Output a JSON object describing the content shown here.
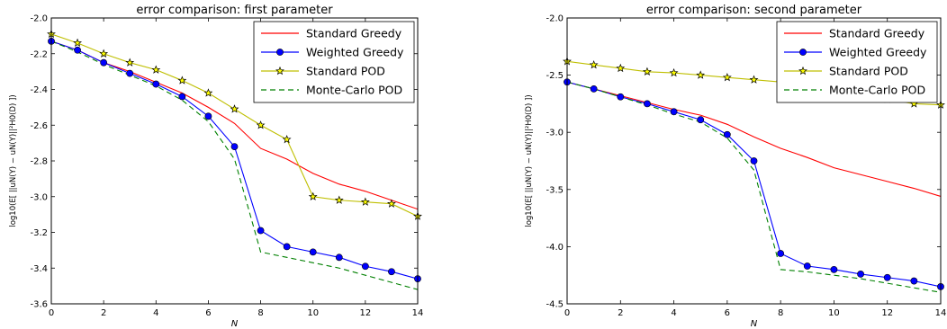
{
  "chart_data": [
    {
      "type": "line",
      "title": "error comparison: first parameter",
      "xlabel": "N",
      "ylabel": "log10(E[ ||uN(Y) − uN(Y)||²H0(D) ])",
      "xlim": [
        0,
        14
      ],
      "ylim": [
        -3.6,
        -2.0
      ],
      "xticks": [
        "0",
        "2",
        "4",
        "6",
        "8",
        "10",
        "12",
        "14"
      ],
      "yticks": [
        "-2.0",
        "-2.2",
        "-2.4",
        "-2.6",
        "-2.8",
        "-3.0",
        "-3.2",
        "-3.4",
        "-3.6"
      ],
      "grid": false,
      "legend_position": "top-right",
      "series": [
        {
          "name": "Standard Greedy",
          "color": "#ff0000",
          "style": "solid",
          "marker": "none",
          "x": [
            0,
            1,
            2,
            3,
            4,
            5,
            6,
            7,
            8,
            9,
            10,
            11,
            12,
            13,
            14
          ],
          "y": [
            -2.13,
            -2.18,
            -2.25,
            -2.3,
            -2.36,
            -2.42,
            -2.5,
            -2.59,
            -2.73,
            -2.79,
            -2.87,
            -2.93,
            -2.97,
            -3.02,
            -3.07
          ]
        },
        {
          "name": "Weighted Greedy",
          "color": "#0000ff",
          "style": "solid",
          "marker": "circle",
          "x": [
            0,
            1,
            2,
            3,
            4,
            5,
            6,
            7,
            8,
            9,
            10,
            11,
            12,
            13,
            14
          ],
          "y": [
            -2.13,
            -2.18,
            -2.25,
            -2.31,
            -2.37,
            -2.44,
            -2.55,
            -2.72,
            -3.19,
            -3.28,
            -3.31,
            -3.34,
            -3.39,
            -3.42,
            -3.46
          ]
        },
        {
          "name": "Standard POD",
          "color": "#bfbf00",
          "style": "solid",
          "marker": "star",
          "x": [
            0,
            1,
            2,
            3,
            4,
            5,
            6,
            7,
            8,
            9,
            10,
            11,
            12,
            13,
            14
          ],
          "y": [
            -2.09,
            -2.14,
            -2.2,
            -2.25,
            -2.29,
            -2.35,
            -2.42,
            -2.51,
            -2.6,
            -2.68,
            -3.0,
            -3.02,
            -3.03,
            -3.04,
            -3.11
          ]
        },
        {
          "name": "Monte-Carlo POD",
          "color": "#008000",
          "style": "dashed",
          "marker": "none",
          "x": [
            0,
            1,
            2,
            3,
            4,
            5,
            6,
            7,
            8,
            9,
            10,
            11,
            12,
            13,
            14
          ],
          "y": [
            -2.13,
            -2.19,
            -2.26,
            -2.32,
            -2.38,
            -2.46,
            -2.58,
            -2.79,
            -3.31,
            -3.34,
            -3.37,
            -3.4,
            -3.44,
            -3.48,
            -3.52
          ]
        }
      ]
    },
    {
      "type": "line",
      "title": "error comparison: second parameter",
      "xlabel": "N",
      "ylabel": "log10(E[ ||uN(Y) − uN(Y)||²H0(D) ])",
      "xlim": [
        0,
        14
      ],
      "ylim": [
        -4.5,
        -2.0
      ],
      "xticks": [
        "0",
        "2",
        "4",
        "6",
        "8",
        "10",
        "12",
        "14"
      ],
      "yticks": [
        "-2.0",
        "-2.5",
        "-3.0",
        "-3.5",
        "-4.0",
        "-4.5"
      ],
      "grid": false,
      "legend_position": "top-right",
      "series": [
        {
          "name": "Standard Greedy",
          "color": "#ff0000",
          "style": "solid",
          "marker": "none",
          "x": [
            0,
            1,
            2,
            3,
            4,
            5,
            6,
            7,
            8,
            9,
            10,
            11,
            12,
            13,
            14
          ],
          "y": [
            -2.56,
            -2.62,
            -2.68,
            -2.74,
            -2.8,
            -2.85,
            -2.93,
            -3.04,
            -3.14,
            -3.22,
            -3.31,
            -3.37,
            -3.43,
            -3.49,
            -3.56
          ]
        },
        {
          "name": "Weighted Greedy",
          "color": "#0000ff",
          "style": "solid",
          "marker": "circle",
          "x": [
            0,
            1,
            2,
            3,
            4,
            5,
            6,
            7,
            8,
            9,
            10,
            11,
            12,
            13,
            14
          ],
          "y": [
            -2.56,
            -2.62,
            -2.69,
            -2.75,
            -2.82,
            -2.89,
            -3.02,
            -3.25,
            -4.06,
            -4.17,
            -4.2,
            -4.24,
            -4.27,
            -4.3,
            -4.35
          ]
        },
        {
          "name": "Standard POD",
          "color": "#bfbf00",
          "style": "solid",
          "marker": "star",
          "x": [
            0,
            1,
            2,
            3,
            4,
            5,
            6,
            7,
            8,
            9,
            10,
            11,
            12,
            13,
            14
          ],
          "y": [
            -2.38,
            -2.41,
            -2.44,
            -2.47,
            -2.48,
            -2.5,
            -2.52,
            -2.54,
            -2.56,
            -2.59,
            -2.63,
            -2.67,
            -2.71,
            -2.75,
            -2.76
          ]
        },
        {
          "name": "Monte-Carlo POD",
          "color": "#008000",
          "style": "dashed",
          "marker": "none",
          "x": [
            0,
            1,
            2,
            3,
            4,
            5,
            6,
            7,
            8,
            9,
            10,
            11,
            12,
            13,
            14
          ],
          "y": [
            -2.56,
            -2.62,
            -2.69,
            -2.76,
            -2.84,
            -2.91,
            -3.05,
            -3.33,
            -4.2,
            -4.22,
            -4.25,
            -4.28,
            -4.32,
            -4.36,
            -4.4
          ]
        }
      ]
    }
  ]
}
